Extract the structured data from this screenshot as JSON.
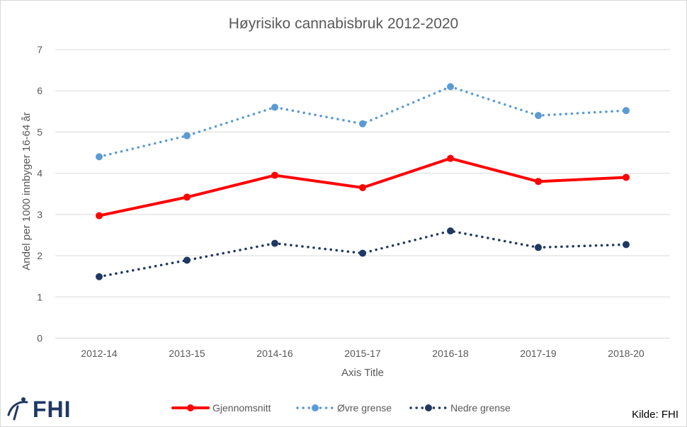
{
  "chart_data": {
    "type": "line",
    "title": "Høyrisiko cannabisbruk 2012-2020",
    "xlabel": "Axis Title",
    "ylabel": "Andel per 1000 innbyger 16-64 år",
    "ylim": [
      0,
      7
    ],
    "yticks": [
      "0",
      "1",
      "2",
      "3",
      "4",
      "5",
      "6",
      "7"
    ],
    "categories": [
      "2012-14",
      "2013-15",
      "2014-16",
      "2015-17",
      "2016-18",
      "2017-19",
      "2018-20"
    ],
    "grid": true,
    "legend_position": "bottom",
    "series": [
      {
        "name": "Gjennomsnitt",
        "color": "#ff0000",
        "style": "solid",
        "values": [
          2.97,
          3.42,
          3.95,
          3.65,
          4.36,
          3.8,
          3.9
        ]
      },
      {
        "name": "Øvre grense",
        "color": "#5b9bd5",
        "style": "dotted",
        "values": [
          4.4,
          4.91,
          5.6,
          5.2,
          6.1,
          5.4,
          5.52
        ]
      },
      {
        "name": "Nedre grense",
        "color": "#1f3864",
        "style": "dotted",
        "values": [
          1.49,
          1.89,
          2.3,
          2.06,
          2.6,
          2.2,
          2.27
        ]
      }
    ]
  },
  "logo": {
    "text": "FHI",
    "icon": "fhi-logo-icon"
  },
  "source": "Kilde: FHI"
}
